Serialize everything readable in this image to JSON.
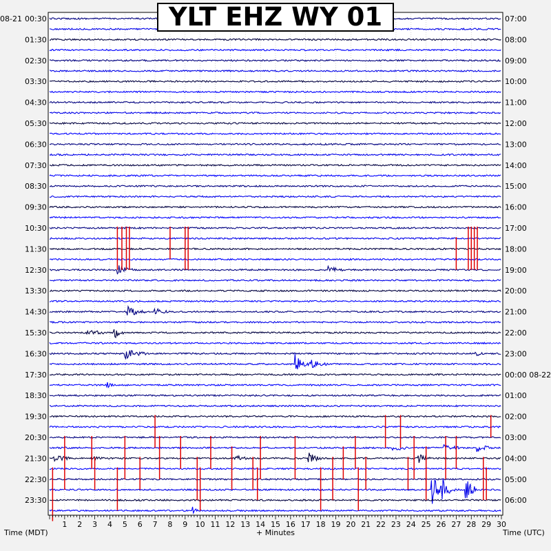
{
  "title": "YLT EHZ WY 01",
  "chart_data": {
    "type": "helicorder",
    "title": "YLT EHZ WY 01",
    "xlabel": "+ Minutes",
    "left_axis_label": "Time (MDT)",
    "right_axis_label": "Time (UTC)",
    "left_date": "08-21",
    "right_date_marker": "08-22",
    "x_ticks": [
      "1",
      "2",
      "3",
      "4",
      "5",
      "6",
      "7",
      "8",
      "9",
      "10",
      "11",
      "12",
      "13",
      "14",
      "15",
      "16",
      "17",
      "18",
      "19",
      "20",
      "21",
      "22",
      "23",
      "24",
      "25",
      "26",
      "27",
      "28",
      "29",
      "30"
    ],
    "xlim": [
      0,
      30
    ],
    "left_hour_labels": [
      "00:30",
      "01:30",
      "02:30",
      "03:30",
      "04:30",
      "05:30",
      "06:30",
      "07:30",
      "08:30",
      "09:30",
      "10:30",
      "11:30",
      "12:30",
      "13:30",
      "14:30",
      "15:30",
      "16:30",
      "17:30",
      "18:30",
      "19:30",
      "20:30",
      "21:30",
      "22:30",
      "23:30"
    ],
    "right_hour_labels": [
      "07:00",
      "08:00",
      "09:00",
      "10:00",
      "11:00",
      "12:00",
      "13:00",
      "14:00",
      "15:00",
      "16:00",
      "17:00",
      "18:00",
      "19:00",
      "20:00",
      "21:00",
      "22:00",
      "23:00",
      "00:00 08-22",
      "01:00",
      "02:00",
      "03:00",
      "04:00",
      "05:00",
      "06:00"
    ],
    "trace_colors": [
      "#000080",
      "#0000e8",
      "#000040",
      "#0000ff"
    ],
    "clip_color": "#e00000",
    "trace_count": 48,
    "events": [
      {
        "trace": 24,
        "minute": 4.5,
        "amp": 8,
        "dur": 1.0
      },
      {
        "trace": 28,
        "minute": 5.2,
        "amp": 7,
        "dur": 1.2
      },
      {
        "trace": 30,
        "minute": 2.5,
        "amp": 5,
        "dur": 1.3
      },
      {
        "trace": 30,
        "minute": 4.3,
        "amp": 9,
        "dur": 0.6
      },
      {
        "trace": 24,
        "minute": 18.5,
        "amp": 6,
        "dur": 1.0
      },
      {
        "trace": 28,
        "minute": 7.0,
        "amp": 6,
        "dur": 0.8
      },
      {
        "trace": 33,
        "minute": 16.3,
        "amp": 15,
        "dur": 1.0
      },
      {
        "trace": 33,
        "minute": 17.4,
        "amp": 5,
        "dur": 1.0
      },
      {
        "trace": 32,
        "minute": 5.0,
        "amp": 7,
        "dur": 1.5
      },
      {
        "trace": 32,
        "minute": 28.3,
        "amp": 4,
        "dur": 0.5
      },
      {
        "trace": 35,
        "minute": 3.8,
        "amp": 4,
        "dur": 0.5
      },
      {
        "trace": 42,
        "minute": 0.3,
        "amp": 6,
        "dur": 1.0
      },
      {
        "trace": 42,
        "minute": 2.8,
        "amp": 4,
        "dur": 0.8
      },
      {
        "trace": 42,
        "minute": 12.3,
        "amp": 5,
        "dur": 0.8
      },
      {
        "trace": 42,
        "minute": 17.2,
        "amp": 9,
        "dur": 0.8
      },
      {
        "trace": 42,
        "minute": 24.5,
        "amp": 8,
        "dur": 0.8
      },
      {
        "trace": 41,
        "minute": 28.4,
        "amp": 6,
        "dur": 1.0
      },
      {
        "trace": 41,
        "minute": 26.2,
        "amp": 7,
        "dur": 1.0
      },
      {
        "trace": 41,
        "minute": 22.8,
        "amp": 6,
        "dur": 1.0
      },
      {
        "trace": 45,
        "minute": 25.4,
        "amp": 22,
        "dur": 0.8
      },
      {
        "trace": 45,
        "minute": 26.1,
        "amp": 14,
        "dur": 0.8
      },
      {
        "trace": 45,
        "minute": 27.6,
        "amp": 20,
        "dur": 0.8
      },
      {
        "trace": 47,
        "minute": 9.5,
        "amp": 5,
        "dur": 0.4
      }
    ],
    "clips": [
      {
        "trace": 20,
        "minute": 4.5,
        "h": 4
      },
      {
        "trace": 20,
        "minute": 4.8,
        "h": 4
      },
      {
        "trace": 20,
        "minute": 5.1,
        "h": 4
      },
      {
        "trace": 20,
        "minute": 5.3,
        "h": 4
      },
      {
        "trace": 20,
        "minute": 8.0,
        "h": 3
      },
      {
        "trace": 20,
        "minute": 9.0,
        "h": 4
      },
      {
        "trace": 20,
        "minute": 9.2,
        "h": 4
      },
      {
        "trace": 20,
        "minute": 27.8,
        "h": 4
      },
      {
        "trace": 20,
        "minute": 28.0,
        "h": 4
      },
      {
        "trace": 20,
        "minute": 28.2,
        "h": 4
      },
      {
        "trace": 20,
        "minute": 28.4,
        "h": 4
      },
      {
        "trace": 21,
        "minute": 27.0,
        "h": 3
      },
      {
        "trace": 38,
        "minute": 7.0,
        "h": 3
      },
      {
        "trace": 38,
        "minute": 22.3,
        "h": 3
      },
      {
        "trace": 38,
        "minute": 23.3,
        "h": 3
      },
      {
        "trace": 38,
        "minute": 29.3,
        "h": 2
      },
      {
        "trace": 40,
        "minute": 1.0,
        "h": 5
      },
      {
        "trace": 40,
        "minute": 2.8,
        "h": 3
      },
      {
        "trace": 40,
        "minute": 5.0,
        "h": 4
      },
      {
        "trace": 40,
        "minute": 7.3,
        "h": 4
      },
      {
        "trace": 40,
        "minute": 8.7,
        "h": 3
      },
      {
        "trace": 40,
        "minute": 10.7,
        "h": 3
      },
      {
        "trace": 40,
        "minute": 14.0,
        "h": 4
      },
      {
        "trace": 40,
        "minute": 16.3,
        "h": 4
      },
      {
        "trace": 40,
        "minute": 20.3,
        "h": 3
      },
      {
        "trace": 40,
        "minute": 24.2,
        "h": 4
      },
      {
        "trace": 40,
        "minute": 26.3,
        "h": 4
      },
      {
        "trace": 40,
        "minute": 27.0,
        "h": 3
      },
      {
        "trace": 41,
        "minute": 12.1,
        "h": 4
      },
      {
        "trace": 41,
        "minute": 19.5,
        "h": 3
      },
      {
        "trace": 41,
        "minute": 25.0,
        "h": 4
      },
      {
        "trace": 42,
        "minute": 3.0,
        "h": 3
      },
      {
        "trace": 42,
        "minute": 6.0,
        "h": 3
      },
      {
        "trace": 42,
        "minute": 9.8,
        "h": 4
      },
      {
        "trace": 42,
        "minute": 13.5,
        "h": 3
      },
      {
        "trace": 42,
        "minute": 18.8,
        "h": 4
      },
      {
        "trace": 42,
        "minute": 21.0,
        "h": 3
      },
      {
        "trace": 42,
        "minute": 23.8,
        "h": 3
      },
      {
        "trace": 42,
        "minute": 28.8,
        "h": 4
      },
      {
        "trace": 43,
        "minute": 0.2,
        "h": 5
      },
      {
        "trace": 43,
        "minute": 4.5,
        "h": 4
      },
      {
        "trace": 43,
        "minute": 10.0,
        "h": 4
      },
      {
        "trace": 43,
        "minute": 13.8,
        "h": 3
      },
      {
        "trace": 43,
        "minute": 18.0,
        "h": 4
      },
      {
        "trace": 43,
        "minute": 20.5,
        "h": 4
      },
      {
        "trace": 43,
        "minute": 25.0,
        "h": 3
      },
      {
        "trace": 43,
        "minute": 29.0,
        "h": 3
      }
    ]
  }
}
